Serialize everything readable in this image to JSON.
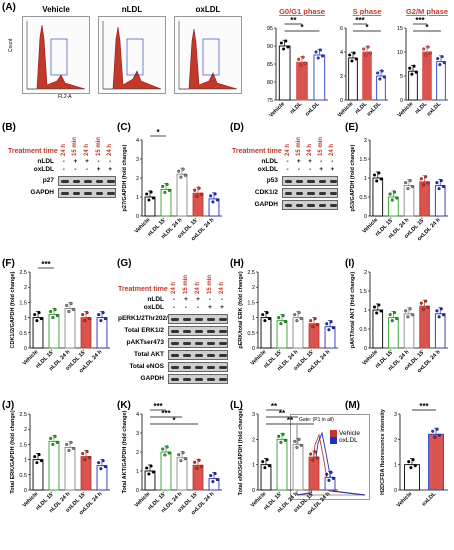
{
  "panels": {
    "A": "(A)",
    "B": "(B)",
    "C": "(C)",
    "D": "(D)",
    "E": "(E)",
    "F": "(F)",
    "G": "(G)",
    "H": "(H)",
    "I": "(I)",
    "J": "(J)",
    "K": "(K)",
    "L": "(L)",
    "M": "(M)"
  },
  "flow_titles": [
    "Vehicle",
    "nLDL",
    "oxLDL"
  ],
  "flow_axis": {
    "x": "FL2-A",
    "y": "Count"
  },
  "treatment": {
    "label": "Treatment time",
    "times": [
      "24 h",
      "15 min",
      "24 h",
      "15 min",
      "24 h"
    ],
    "rows": [
      "nLDL",
      "oxLDL"
    ],
    "nldl_marks": [
      "-",
      "+",
      "+",
      "-",
      "-"
    ],
    "oxldl_marks": [
      "-",
      "-",
      "-",
      "+",
      "+"
    ]
  },
  "blots": {
    "B": [
      "p27",
      "GAPDH"
    ],
    "D": [
      "p53",
      "CDK1/2",
      "GAPDH"
    ],
    "G": [
      "pERK1/2Thr202/Tyr204",
      "Total ERK1/2",
      "pAKTser473",
      "Total AKT",
      "Total eNOS",
      "GAPDH"
    ]
  },
  "categories5": [
    "Vehicle",
    "nLDL 15'",
    "nLDL 24 h",
    "oxLDL 15'",
    "oxLDL 24 h"
  ],
  "colors": {
    "vehicle": "#000000",
    "nldl": "#2ca02c",
    "oxldl_white": "#888888",
    "oxldl15": "#c0392b",
    "oxldl24": "#1f2fbf",
    "red_bar": "#d9534f",
    "blue_bar": "#2b3cc8"
  },
  "chart_data": [
    {
      "id": "G0G1",
      "type": "bar",
      "title": "G0/G1 phase",
      "categories": [
        "Vehicle",
        "nLDL",
        "oxLDL"
      ],
      "values": [
        90,
        85.5,
        87.5
      ],
      "ylim": [
        75,
        95
      ],
      "yticks": [
        75,
        80,
        85,
        90,
        95
      ],
      "sig": [
        "**",
        "*"
      ]
    },
    {
      "id": "S",
      "type": "bar",
      "title": "S phase",
      "categories": [
        "Vehicle",
        "nLDL",
        "oxLDL"
      ],
      "values": [
        3.5,
        4,
        2
      ],
      "ylim": [
        0,
        6
      ],
      "yticks": [
        0,
        2,
        4,
        6
      ],
      "sig": [
        "***",
        "*"
      ]
    },
    {
      "id": "G2M",
      "type": "bar",
      "title": "G2/M phase",
      "categories": [
        "Vehicle",
        "nLDL",
        "oxLDL"
      ],
      "values": [
        6,
        10,
        8
      ],
      "ylim": [
        0,
        15
      ],
      "yticks": [
        0,
        5,
        10,
        15
      ],
      "sig": [
        "***",
        "*"
      ]
    },
    {
      "id": "C",
      "type": "bar",
      "ylabel": "p27/GAPDH (fold change)",
      "categories": [
        "Vehicle",
        "nLDL 15'",
        "nLDL 24 h",
        "oxLDL 15'",
        "oxLDL 24 h"
      ],
      "values": [
        1.0,
        1.4,
        2.2,
        1.2,
        0.9
      ],
      "ylim": [
        0,
        4
      ],
      "yticks": [
        0,
        1,
        2,
        3,
        4
      ],
      "sig": [
        "*"
      ]
    },
    {
      "id": "E",
      "type": "bar",
      "ylabel": "p53/GAPDH (fold change)",
      "categories": [
        "Vehicle",
        "nLDL 15'",
        "nLDL 24 h",
        "oxLDL 15'",
        "oxLDL 24 h"
      ],
      "values": [
        1.0,
        0.5,
        0.8,
        0.9,
        0.8
      ],
      "ylim": [
        0,
        2.0
      ],
      "yticks": [
        0,
        0.5,
        1.0,
        1.5,
        2.0
      ],
      "sig": []
    },
    {
      "id": "F",
      "type": "bar",
      "ylabel": "CDK1/2/GAPDH (fold change)",
      "categories": [
        "Vehicle",
        "nLDL 15'",
        "nLDL 24 h",
        "oxLDL 15'",
        "oxLDL 24 h"
      ],
      "values": [
        1.0,
        1.1,
        1.3,
        1.0,
        1.0
      ],
      "ylim": [
        0,
        2.5
      ],
      "yticks": [
        0,
        0.5,
        1.0,
        1.5,
        2.0,
        2.5
      ],
      "sig": [
        "***"
      ]
    },
    {
      "id": "H",
      "type": "bar",
      "ylabel": "pERK/total ERK (fold change)",
      "categories": [
        "Vehicle",
        "nLDL 15'",
        "nLDL 24 h",
        "oxLDL 15'",
        "oxLDL 24 h"
      ],
      "values": [
        1.0,
        0.9,
        1.0,
        0.8,
        0.7
      ],
      "ylim": [
        0,
        2.5
      ],
      "yticks": [
        0,
        0.5,
        1.0,
        1.5,
        2.0,
        2.5
      ],
      "sig": []
    },
    {
      "id": "I",
      "type": "bar",
      "ylabel": "pAKT/total AKT (fold change)",
      "categories": [
        "Vehicle",
        "nLDL 15'",
        "nLDL 24 h",
        "oxLDL 15'",
        "oxLDL 24 h"
      ],
      "values": [
        1.0,
        0.8,
        0.9,
        1.1,
        0.9
      ],
      "ylim": [
        0,
        2.0
      ],
      "yticks": [
        0,
        0.5,
        1.0,
        1.5,
        2.0
      ],
      "sig": []
    },
    {
      "id": "J",
      "type": "bar",
      "ylabel": "Total ERK/GAPDH (fold change)",
      "categories": [
        "Vehicle",
        "nLDL 15'",
        "nLDL 24 h",
        "oxLDL 15'",
        "oxLDL 24 h"
      ],
      "values": [
        1.0,
        1.6,
        1.4,
        1.1,
        0.8
      ],
      "ylim": [
        0,
        2.5
      ],
      "yticks": [
        0,
        0.5,
        1.0,
        1.5,
        2.0,
        2.5
      ],
      "sig": []
    },
    {
      "id": "K",
      "type": "bar",
      "ylabel": "Total AKT/GAPDH (fold change)",
      "categories": [
        "Vehicle",
        "nLDL 15'",
        "nLDL 24 h",
        "oxLDL 15'",
        "oxLDL 24 h"
      ],
      "values": [
        1.0,
        2.0,
        1.7,
        1.3,
        0.6
      ],
      "ylim": [
        0,
        4
      ],
      "yticks": [
        0,
        1,
        2,
        3,
        4
      ],
      "sig": [
        "***",
        "***",
        "*"
      ]
    },
    {
      "id": "L",
      "type": "bar",
      "ylabel": "Total eNOS/GAPDH (fold change)",
      "categories": [
        "Vehicle",
        "nLDL 15'",
        "nLDL 24 h",
        "oxLDL 15'",
        "oxLDL 24 h"
      ],
      "values": [
        1.0,
        2.0,
        1.8,
        1.3,
        0.5
      ],
      "ylim": [
        0,
        3
      ],
      "yticks": [
        0,
        1,
        2,
        3
      ],
      "sig": [
        "**",
        "**",
        "**"
      ]
    },
    {
      "id": "M",
      "type": "bar",
      "ylabel": "H2DCFDA fluorescence intensity",
      "categories": [
        "Vehicle",
        "oxLDL"
      ],
      "values": [
        1.0,
        2.2
      ],
      "ylim": [
        0,
        3
      ],
      "yticks": [
        0,
        1,
        2,
        3
      ],
      "sig": [
        "***"
      ]
    }
  ],
  "m_histogram": {
    "legend": [
      "Vehicle",
      "oxLDL"
    ],
    "gate": "Gate: (P1 in all)"
  }
}
